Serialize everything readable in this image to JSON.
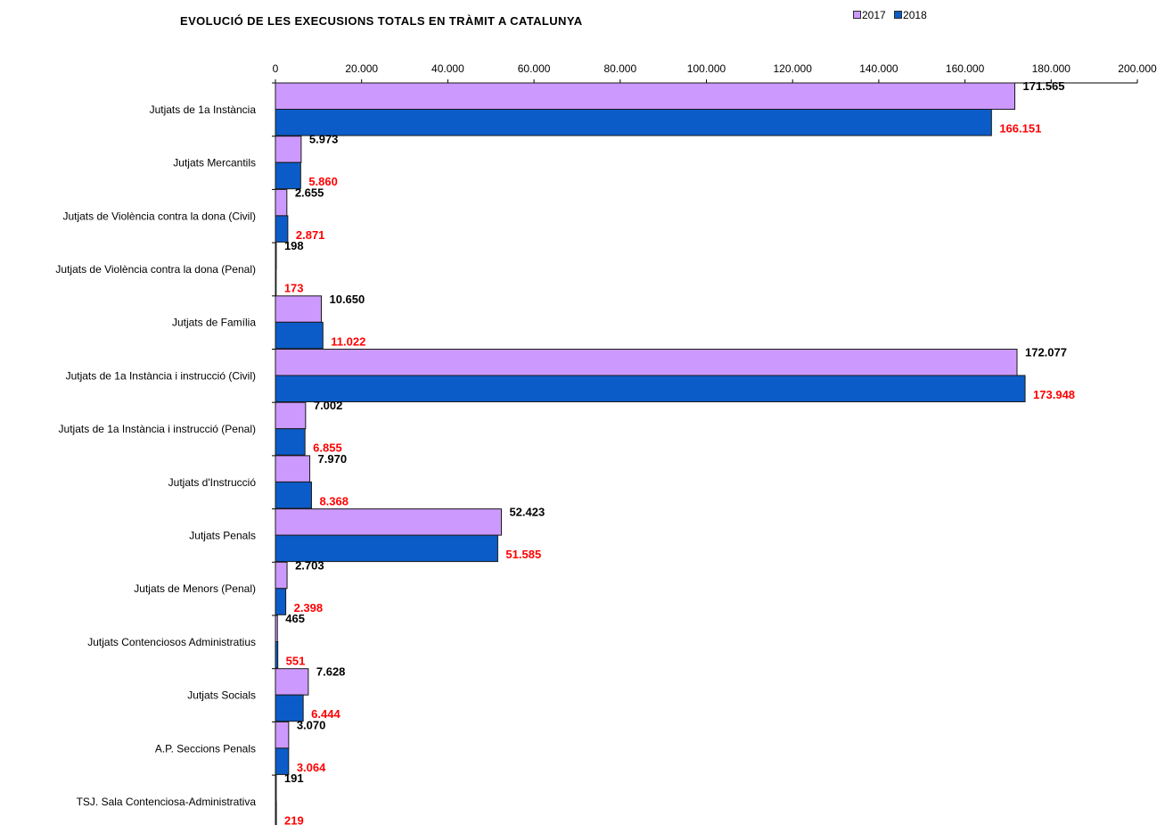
{
  "chart_data": {
    "type": "bar",
    "orientation": "horizontal",
    "title": "EVOLUCIÓ DE LES EXECUSIONS TOTALS EN TRÀMIT A CATALUNYA",
    "categories": [
      "Jutjats de 1a Instància",
      "Jutjats  Mercantils",
      "Jutjats de Violència contra la dona (Civil)",
      "Jutjats de Violència contra la dona (Penal)",
      "Jutjats de Família",
      "Jutjats de 1a Instància i instrucció   (Civil)",
      "Jutjats de 1a Instància i instrucció (Penal)",
      "Jutjats d'Instrucció",
      "Jutjats  Penals",
      "Jutjats de Menors   (Penal)",
      "Jutjats  Contenciosos Administratius",
      "Jutjats  Socials",
      "A.P. Seccions Penals",
      "TSJ. Sala Contenciosa-Administrativa"
    ],
    "series": [
      {
        "name": "2017",
        "color": "#cc99ff",
        "label_color": "#000000",
        "values": [
          171565,
          5973,
          2655,
          198,
          10650,
          172077,
          7002,
          7970,
          52423,
          2703,
          465,
          7628,
          3070,
          191
        ],
        "labels": [
          "171.565",
          "5.973",
          "2.655",
          "198",
          "10.650",
          "172.077",
          "7.002",
          "7.970",
          "52.423",
          "2.703",
          "465",
          "7.628",
          "3.070",
          "191"
        ]
      },
      {
        "name": "2018",
        "color": "#0b5cc8",
        "label_color": "#ff0000",
        "values": [
          166151,
          5860,
          2871,
          173,
          11022,
          173948,
          6855,
          8368,
          51585,
          2398,
          551,
          6444,
          3064,
          219
        ],
        "labels": [
          "166.151",
          "5.860",
          "2.871",
          "173",
          "11.022",
          "173.948",
          "6.855",
          "8.368",
          "51.585",
          "2.398",
          "551",
          "6.444",
          "3.064",
          "219"
        ]
      }
    ],
    "xlim": [
      0,
      200000
    ],
    "xticks": [
      0,
      20000,
      40000,
      60000,
      80000,
      100000,
      120000,
      140000,
      160000,
      180000,
      200000
    ],
    "xtick_labels": [
      "0",
      "20.000",
      "40.000",
      "60.000",
      "80.000",
      "100.000",
      "120.000",
      "140.000",
      "160.000",
      "180.000",
      "200.000"
    ],
    "x_axis_position": "top",
    "grid": false,
    "legend_position": "top-right",
    "xlabel": "",
    "ylabel": ""
  }
}
